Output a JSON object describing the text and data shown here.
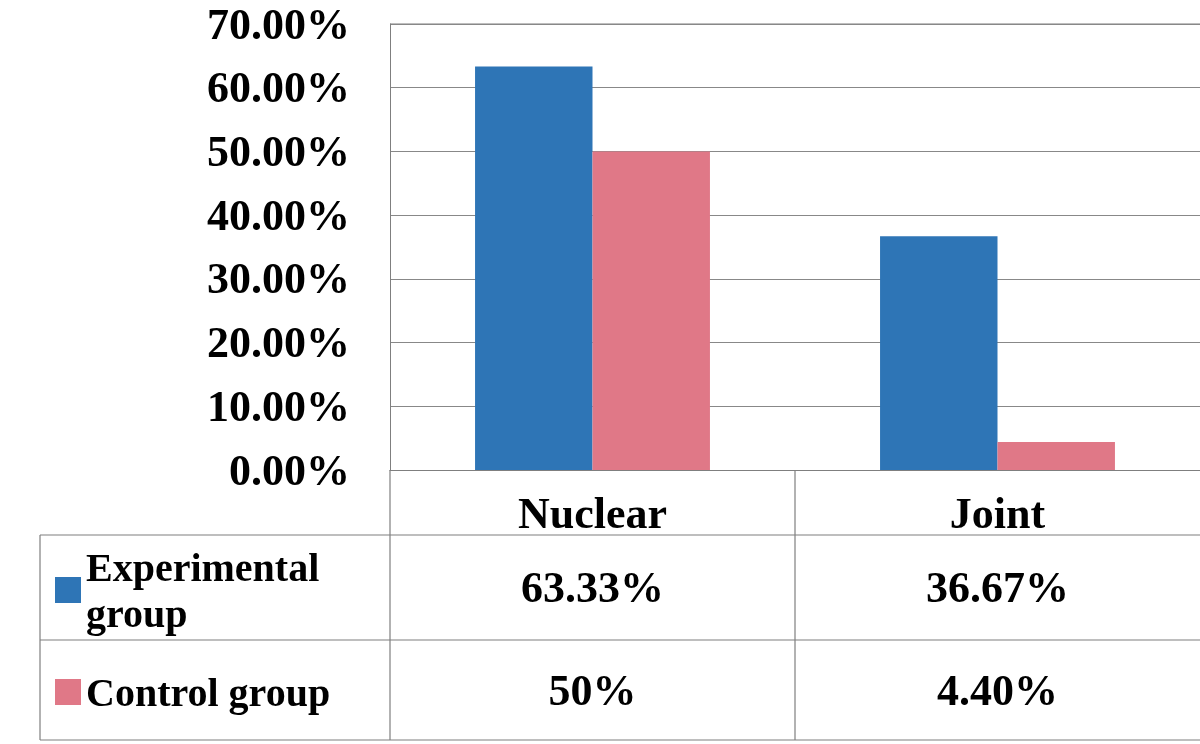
{
  "chart_data": {
    "type": "bar",
    "categories": [
      "Nuclear",
      "Joint"
    ],
    "series": [
      {
        "name": "Experimental group",
        "color": "#2e75b6",
        "values": [
          63.33,
          36.67
        ],
        "value_labels": [
          "63.33%",
          "36.67%"
        ]
      },
      {
        "name": "Control group",
        "color": "#e07887",
        "values": [
          50,
          4.4
        ],
        "value_labels": [
          "50%",
          "4.40%"
        ]
      }
    ],
    "ylim": [
      0,
      70
    ],
    "yticks": [
      {
        "value": 0,
        "label": "0.00%"
      },
      {
        "value": 10,
        "label": "10.00%"
      },
      {
        "value": 20,
        "label": "20.00%"
      },
      {
        "value": 30,
        "label": "30.00%"
      },
      {
        "value": 40,
        "label": "40.00%"
      },
      {
        "value": 50,
        "label": "50.00%"
      },
      {
        "value": 60,
        "label": "60.00%"
      },
      {
        "value": 70,
        "label": "70.00%"
      }
    ],
    "grid": "y",
    "legend": "bottom left"
  }
}
